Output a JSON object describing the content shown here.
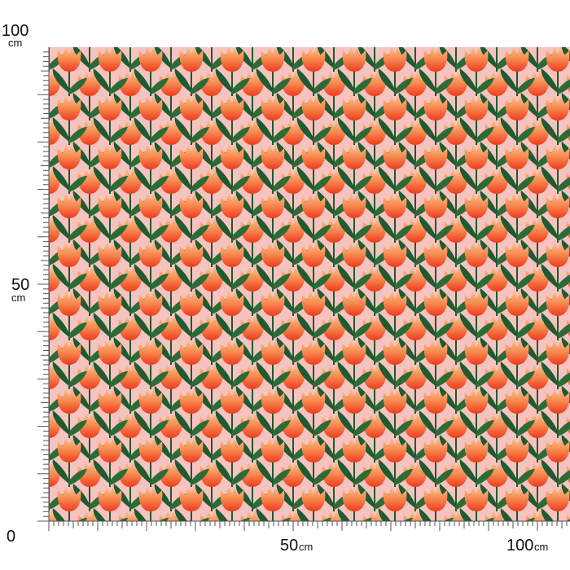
{
  "left_ruler": {
    "top": {
      "number": "100",
      "unit": "cm"
    },
    "middle": {
      "number": "50",
      "unit": "cm"
    }
  },
  "bottom_ruler": {
    "origin": "0",
    "middle": {
      "number": "50",
      "unit": "cm"
    },
    "end": {
      "number": "100",
      "unit": "cm"
    }
  }
}
